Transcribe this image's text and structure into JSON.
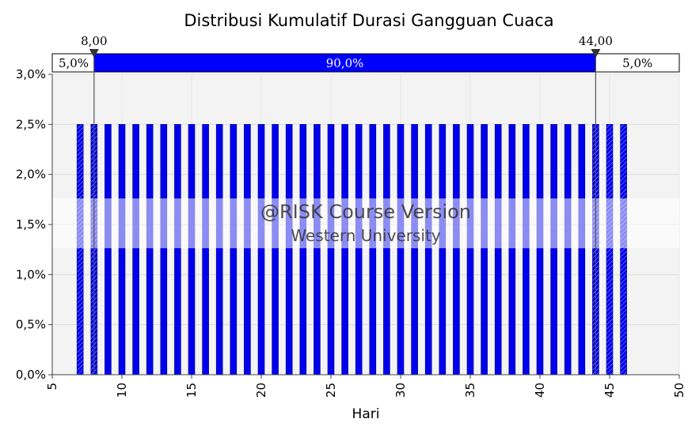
{
  "chart_data": {
    "type": "bar",
    "title": "Distribusi Kumulatif Durasi Gangguan Cuaca",
    "xlabel": "Hari",
    "ylabel": "",
    "xlim": [
      5,
      50
    ],
    "ylim": [
      0,
      3.0
    ],
    "x_ticks": [
      "5",
      "10",
      "15",
      "20",
      "25",
      "30",
      "35",
      "40",
      "45",
      "50"
    ],
    "y_ticks": [
      "0,0%",
      "0,5%",
      "1,0%",
      "1,5%",
      "2,0%",
      "2,5%",
      "3,0%"
    ],
    "categories": [
      7,
      8,
      9,
      10,
      11,
      12,
      13,
      14,
      15,
      16,
      17,
      18,
      19,
      20,
      21,
      22,
      23,
      24,
      25,
      26,
      27,
      28,
      29,
      30,
      31,
      32,
      33,
      34,
      35,
      36,
      37,
      38,
      39,
      40,
      41,
      42,
      43,
      44,
      45,
      46
    ],
    "values": [
      2.5,
      2.5,
      2.5,
      2.5,
      2.5,
      2.5,
      2.5,
      2.5,
      2.5,
      2.5,
      2.5,
      2.5,
      2.5,
      2.5,
      2.5,
      2.5,
      2.5,
      2.5,
      2.5,
      2.5,
      2.5,
      2.5,
      2.5,
      2.5,
      2.5,
      2.5,
      2.5,
      2.5,
      2.5,
      2.5,
      2.5,
      2.5,
      2.5,
      2.5,
      2.5,
      2.5,
      2.5,
      2.5,
      2.5,
      2.5
    ],
    "grid": true,
    "delimiters": {
      "left_value": 8,
      "right_value": 44,
      "left_label": "8,00",
      "right_label": "44,00",
      "left_pct": "5,0%",
      "middle_pct": "90,0%",
      "right_pct": "5,0%"
    }
  },
  "watermark": {
    "line1": "@RISK Course Version",
    "line2": "Western University"
  },
  "colors": {
    "bar": "#0000ee",
    "bar_edge": "#000080",
    "plot_bg": "#f2f2f2",
    "band": "#0000ff"
  }
}
